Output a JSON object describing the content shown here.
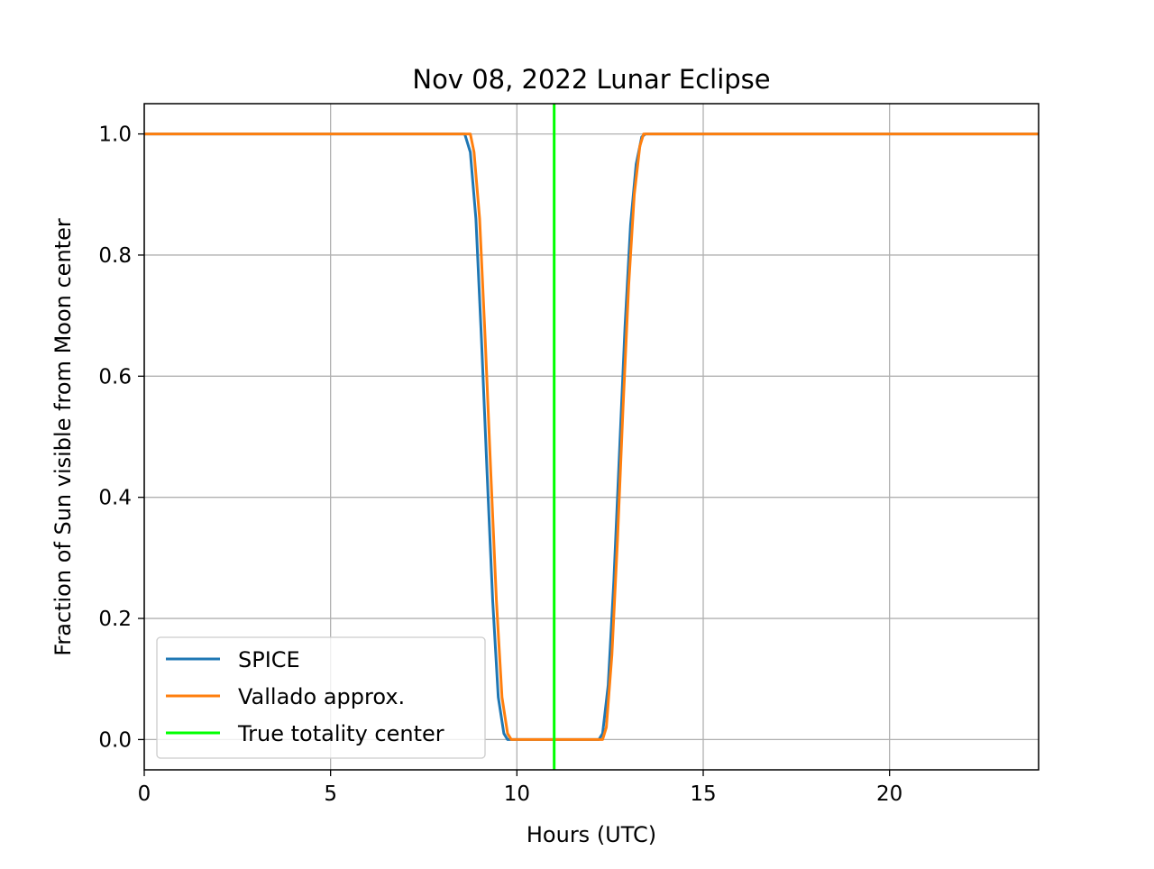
{
  "chart_data": {
    "type": "line",
    "title": "Nov 08, 2022 Lunar Eclipse",
    "xlabel": "Hours (UTC)",
    "ylabel": "Fraction of Sun visible from Moon center",
    "xlim": [
      0,
      24
    ],
    "ylim": [
      -0.05,
      1.05
    ],
    "xticks": [
      0,
      5,
      10,
      15,
      20
    ],
    "xtick_labels": [
      "0",
      "5",
      "10",
      "15",
      "20"
    ],
    "yticks": [
      0.0,
      0.2,
      0.4,
      0.6,
      0.8,
      1.0
    ],
    "ytick_labels": [
      "0.0",
      "0.2",
      "0.4",
      "0.6",
      "0.8",
      "1.0"
    ],
    "grid": true,
    "legend_position": "lower-left",
    "series": [
      {
        "name": "SPICE",
        "color": "#1f77b4",
        "x": [
          0,
          8.6,
          8.75,
          8.9,
          9.05,
          9.2,
          9.35,
          9.5,
          9.65,
          9.75,
          9.85,
          10.5,
          11.0,
          12.2,
          12.3,
          12.45,
          12.6,
          12.75,
          12.9,
          13.05,
          13.2,
          13.35,
          13.45,
          24
        ],
        "y": [
          1.0,
          1.0,
          0.97,
          0.86,
          0.66,
          0.44,
          0.23,
          0.07,
          0.01,
          0.0,
          0.0,
          0.0,
          0.0,
          0.0,
          0.01,
          0.09,
          0.26,
          0.47,
          0.68,
          0.85,
          0.95,
          0.995,
          1.0,
          1.0
        ]
      },
      {
        "name": "Vallado approx.",
        "color": "#ff7f0e",
        "x": [
          0,
          8.75,
          8.85,
          9.0,
          9.15,
          9.3,
          9.45,
          9.6,
          9.75,
          9.85,
          9.95,
          10.5,
          11.0,
          12.3,
          12.4,
          12.55,
          12.7,
          12.85,
          13.0,
          13.15,
          13.3,
          13.4,
          13.5,
          24
        ],
        "y": [
          1.0,
          1.0,
          0.97,
          0.86,
          0.66,
          0.44,
          0.23,
          0.07,
          0.01,
          0.0,
          0.0,
          0.0,
          0.0,
          0.0,
          0.02,
          0.14,
          0.33,
          0.55,
          0.75,
          0.9,
          0.98,
          1.0,
          1.0,
          1.0
        ]
      }
    ],
    "vlines": [
      {
        "name": "True totality center",
        "color": "#00ff00",
        "x": 11.0
      }
    ]
  }
}
